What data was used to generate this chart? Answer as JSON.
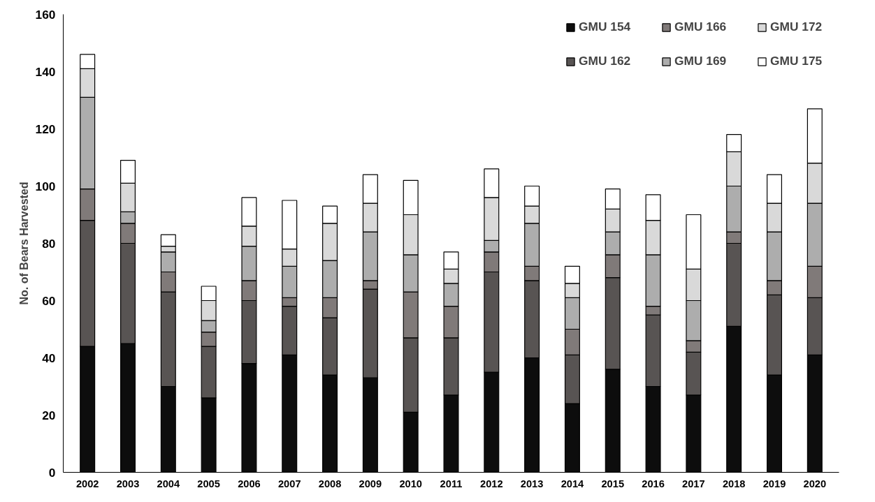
{
  "chart_data": {
    "type": "bar",
    "stacked": true,
    "ylabel": "No. of Bears Harvested",
    "categories": [
      "2002",
      "2003",
      "2004",
      "2005",
      "2006",
      "2007",
      "2008",
      "2009",
      "2010",
      "2011",
      "2012",
      "2013",
      "2014",
      "2015",
      "2016",
      "2017",
      "2018",
      "2019",
      "2020"
    ],
    "series": [
      {
        "name": "GMU 154",
        "color": "#0d0d0d",
        "values": [
          44,
          45,
          30,
          26,
          38,
          41,
          34,
          33,
          21,
          27,
          35,
          40,
          24,
          36,
          30,
          27,
          51,
          34,
          41
        ]
      },
      {
        "name": "GMU 162",
        "color": "#585453",
        "values": [
          44,
          35,
          33,
          18,
          22,
          17,
          20,
          31,
          26,
          20,
          35,
          27,
          17,
          32,
          25,
          15,
          29,
          28,
          20
        ]
      },
      {
        "name": "GMU 166",
        "color": "#807a79",
        "values": [
          11,
          7,
          7,
          5,
          7,
          3,
          7,
          3,
          16,
          11,
          7,
          5,
          9,
          8,
          3,
          4,
          4,
          5,
          11
        ]
      },
      {
        "name": "GMU 169",
        "color": "#adadad",
        "values": [
          32,
          4,
          7,
          4,
          12,
          11,
          13,
          17,
          13,
          8,
          4,
          15,
          11,
          8,
          18,
          14,
          16,
          17,
          22
        ]
      },
      {
        "name": "GMU 172",
        "color": "#d9d9d9",
        "values": [
          10,
          10,
          2,
          7,
          7,
          6,
          13,
          10,
          14,
          5,
          15,
          6,
          5,
          8,
          12,
          11,
          12,
          10,
          14
        ]
      },
      {
        "name": "GMU 175",
        "color": "#ffffff",
        "values": [
          5,
          8,
          4,
          5,
          10,
          17,
          6,
          10,
          12,
          6,
          10,
          7,
          6,
          7,
          9,
          19,
          6,
          10,
          19
        ]
      }
    ],
    "ylim": [
      0,
      160
    ],
    "yticks": [
      0,
      20,
      40,
      60,
      80,
      100,
      120,
      140,
      160
    ],
    "grid": false,
    "legend": "top right"
  }
}
